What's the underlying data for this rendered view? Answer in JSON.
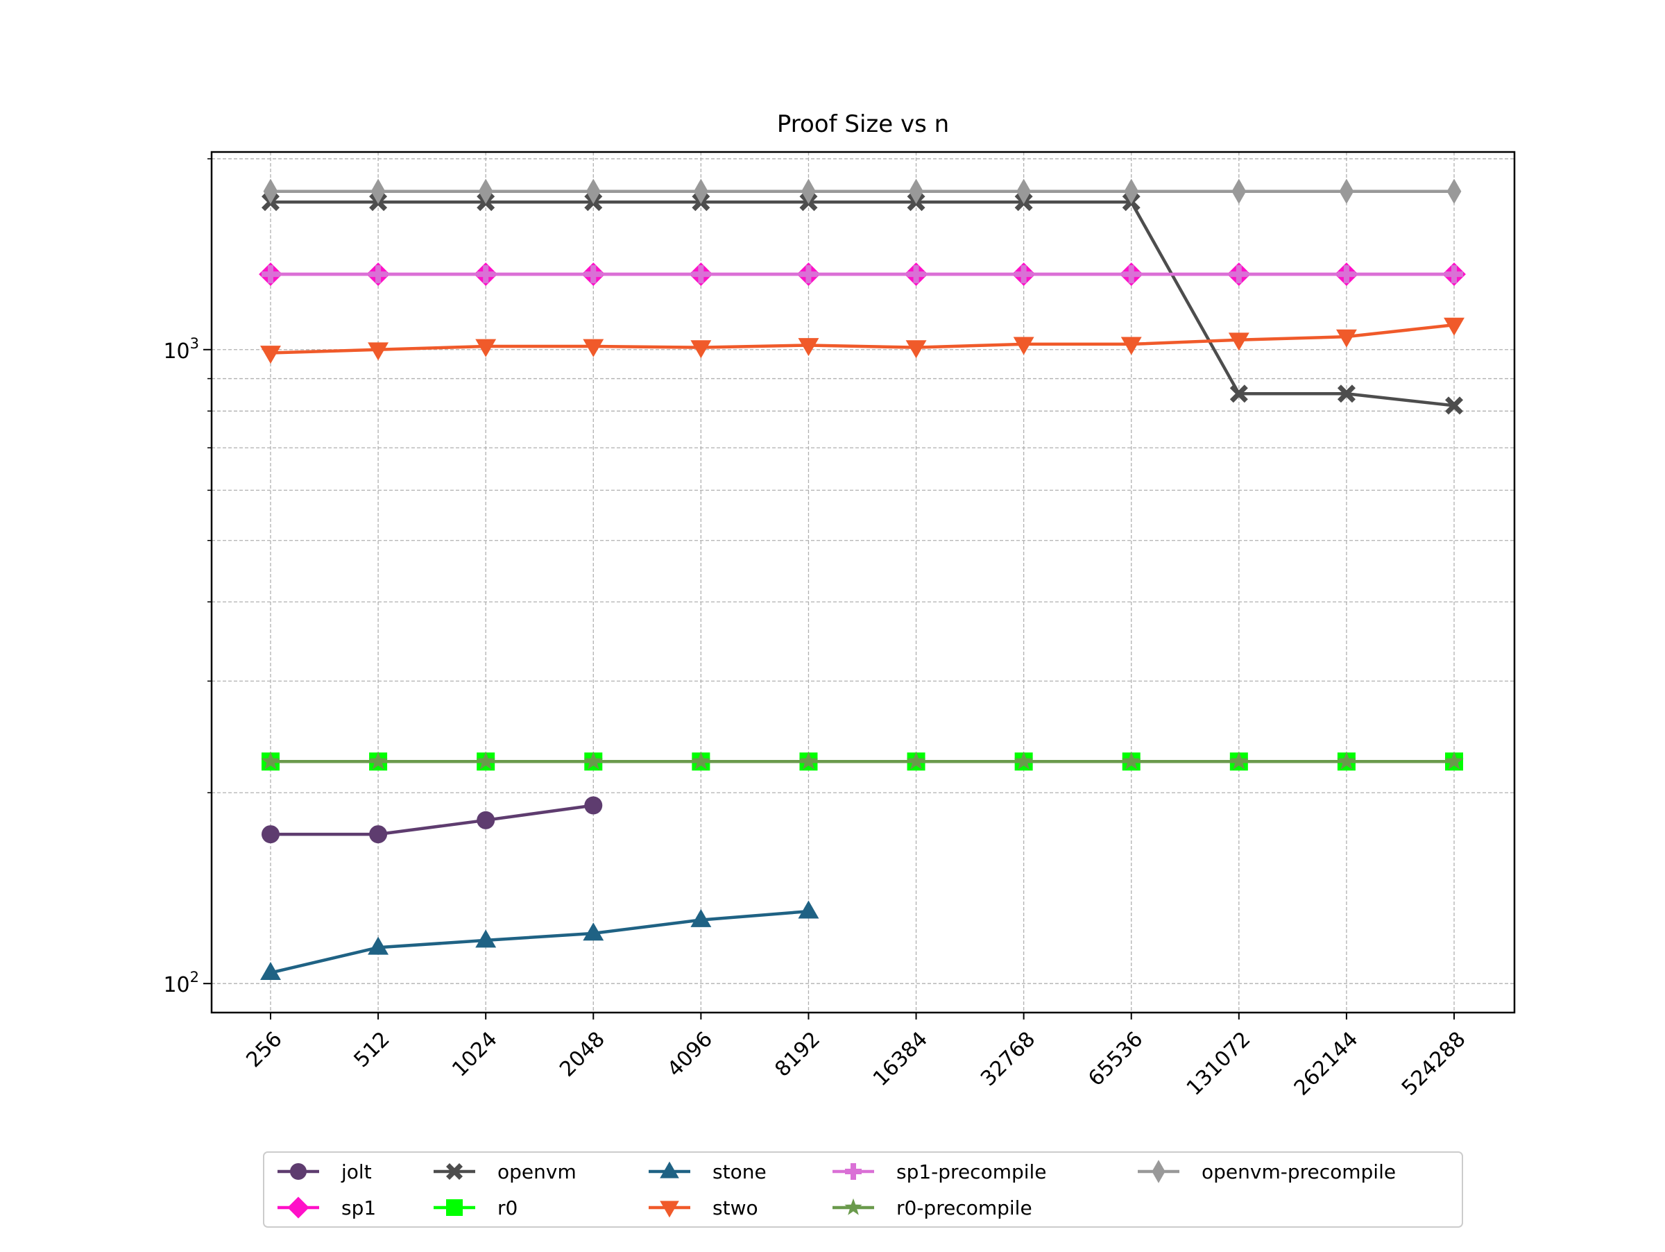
{
  "chart_data": {
    "type": "line",
    "title": "Proof Size vs n",
    "xlabel": "",
    "ylabel": "",
    "yscale": "log",
    "ylim": [
      90,
      2050
    ],
    "grid": true,
    "legend_position": "bottom-center",
    "categories": [
      "256",
      "512",
      "1024",
      "2048",
      "4096",
      "8192",
      "16384",
      "32768",
      "65536",
      "131072",
      "262144",
      "524288"
    ],
    "y_ticks": [
      {
        "value": 100,
        "base": "10",
        "exp": "2"
      },
      {
        "value": 1000,
        "base": "10",
        "exp": "3"
      }
    ],
    "series": [
      {
        "name": "jolt",
        "color": "#5e3c6f",
        "marker": "circle",
        "values": [
          172,
          172,
          181,
          191,
          null,
          null,
          null,
          null,
          null,
          null,
          null,
          null
        ]
      },
      {
        "name": "sp1",
        "color": "#ff10c8",
        "marker": "diamond",
        "values": [
          1315,
          1315,
          1315,
          1315,
          1315,
          1315,
          1315,
          1315,
          1315,
          1315,
          1315,
          1315
        ]
      },
      {
        "name": "openvm",
        "color": "#4d4d4d",
        "marker": "x",
        "values": [
          1709,
          1709,
          1709,
          1709,
          1709,
          1709,
          1709,
          1709,
          1709,
          852,
          852,
          816
        ]
      },
      {
        "name": "r0",
        "color": "#00ff00",
        "marker": "square",
        "values": [
          224,
          224,
          224,
          224,
          224,
          224,
          224,
          224,
          224,
          224,
          224,
          224
        ]
      },
      {
        "name": "stone",
        "color": "#1f6284",
        "marker": "triangle-up",
        "values": [
          104,
          114,
          117,
          120,
          126,
          130,
          null,
          null,
          null,
          null,
          null,
          null
        ]
      },
      {
        "name": "stwo",
        "color": "#f05a2a",
        "marker": "triangle-down",
        "values": [
          988,
          1000,
          1012,
          1012,
          1008,
          1016,
          1008,
          1020,
          1020,
          1036,
          1048,
          1094
        ]
      },
      {
        "name": "sp1-precompile",
        "color": "#da70d6",
        "marker": "plus",
        "values": [
          1315,
          1315,
          1315,
          1315,
          1315,
          1315,
          1315,
          1315,
          1315,
          1315,
          1315,
          1315
        ]
      },
      {
        "name": "r0-precompile",
        "color": "#6a9a4c",
        "marker": "star",
        "values": [
          224,
          224,
          224,
          224,
          224,
          224,
          224,
          224,
          224,
          224,
          224,
          224
        ]
      },
      {
        "name": "openvm-precompile",
        "color": "#999999",
        "marker": "thin-diamond",
        "values": [
          1777,
          1777,
          1777,
          1777,
          1777,
          1777,
          1777,
          1777,
          1777,
          1777,
          1777,
          1777
        ]
      }
    ]
  }
}
